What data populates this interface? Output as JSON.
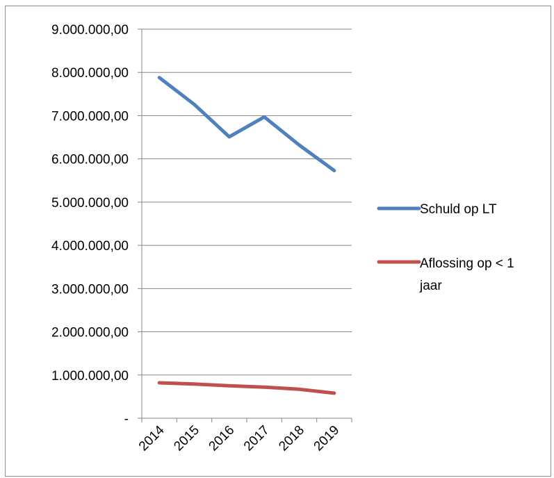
{
  "chart_data": {
    "type": "line",
    "title": "",
    "xlabel": "",
    "ylabel": "",
    "categories": [
      "2014",
      "2015",
      "2016",
      "2017",
      "2018",
      "2019"
    ],
    "y_tick_labels": [
      "-",
      "1.000.000,00",
      "2.000.000,00",
      "3.000.000,00",
      "4.000.000,00",
      "5.000.000,00",
      "6.000.000,00",
      "7.000.000,00",
      "8.000.000,00",
      "9.000.000,00"
    ],
    "ylim": [
      0,
      9000000
    ],
    "grid": true,
    "legend_position": "right",
    "series": [
      {
        "name": "Schuld op LT",
        "color": "#4f81bd",
        "values": [
          7880000,
          7260000,
          6510000,
          6970000,
          6320000,
          5730000
        ]
      },
      {
        "name": "Aflossing op < 1 jaar",
        "legend_lines": [
          "Aflossing op < 1",
          "jaar"
        ],
        "color": "#c0504d",
        "values": [
          820000,
          790000,
          750000,
          720000,
          670000,
          580000
        ]
      }
    ],
    "grid_color": "#868686",
    "axis_color": "#868686"
  }
}
